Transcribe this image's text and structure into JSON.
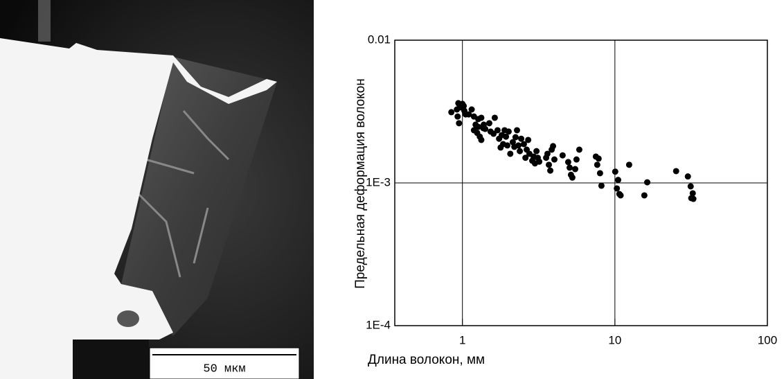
{
  "micrograph": {
    "scale_label": "50 мкм"
  },
  "chart_data": {
    "type": "scatter",
    "x_label": "Длина волокон,  мм",
    "y_label": "Предельная деформация волокон",
    "xlog": true,
    "ylog": true,
    "grid": true,
    "color": "#000000",
    "xlim": [
      0.36,
      100
    ],
    "ylim": [
      0.0001,
      0.01
    ],
    "xticks": [
      1,
      10,
      100
    ],
    "yticks": [
      {
        "value": 0.0001,
        "label": "1E-4"
      },
      {
        "value": 0.001,
        "label": "1E-3"
      },
      {
        "value": 0.01,
        "label": "0.01"
      }
    ],
    "x": [
      0.846,
      0.92,
      0.94,
      0.96,
      0.98,
      1.0,
      1.02,
      0.95,
      0.93,
      1.03,
      1.05,
      1.1,
      1.15,
      1.19,
      1.22,
      1.19,
      1.25,
      1.27,
      1.3,
      1.33,
      1.37,
      1.27,
      1.33,
      1.38,
      1.41,
      1.5,
      1.53,
      1.6,
      1.63,
      1.7,
      1.74,
      1.78,
      1.81,
      1.85,
      1.89,
      1.93,
      1.97,
      2.01,
      2.06,
      2.14,
      2.19,
      2.23,
      2.28,
      2.33,
      2.38,
      2.43,
      2.53,
      2.59,
      2.64,
      2.7,
      2.75,
      2.87,
      2.93,
      2.99,
      3.06,
      3.12,
      3.19,
      3.54,
      3.61,
      3.69,
      3.77,
      3.85,
      3.93,
      4.01,
      4.54,
      4.94,
      5.05,
      5.15,
      5.26,
      5.49,
      5.6,
      5.84,
      7.5,
      7.66,
      7.82,
      7.99,
      8.16,
      10.05,
      10.3,
      10.5,
      10.7,
      10.9,
      12.4,
      15.6,
      16.3,
      25.2,
      30.1,
      31.4,
      31.7,
      32.4,
      32.7
    ],
    "y": [
      0.00313,
      0.00327,
      0.00362,
      0.0035,
      0.00338,
      0.00358,
      0.00346,
      0.00262,
      0.00292,
      0.0032,
      0.00302,
      0.00302,
      0.00327,
      0.00292,
      0.00256,
      0.00234,
      0.00224,
      0.00247,
      0.00211,
      0.002,
      0.00242,
      0.0028,
      0.00286,
      0.00256,
      0.00239,
      0.00262,
      0.00229,
      0.00221,
      0.00286,
      0.00234,
      0.00204,
      0.00177,
      0.00216,
      0.00187,
      0.00234,
      0.00211,
      0.00183,
      0.00229,
      0.0016,
      0.00193,
      0.00179,
      0.00209,
      0.00234,
      0.00183,
      0.00167,
      0.00204,
      0.00187,
      0.0015,
      0.00171,
      0.002,
      0.0016,
      0.00143,
      0.00153,
      0.00137,
      0.00167,
      0.0015,
      0.00141,
      0.0015,
      0.0016,
      0.00134,
      0.00122,
      0.00171,
      0.00181,
      0.00146,
      0.00156,
      0.0014,
      0.00128,
      0.00114,
      0.00109,
      0.00125,
      0.00146,
      0.00171,
      0.00153,
      0.00134,
      0.00148,
      0.00117,
      0.000956,
      0.0012,
      0.000915,
      0.00105,
      0.000836,
      0.000818,
      0.00134,
      0.000818,
      0.00101,
      0.00121,
      0.00111,
      0.000946,
      0.000782,
      0.000846,
      0.000773
    ]
  }
}
